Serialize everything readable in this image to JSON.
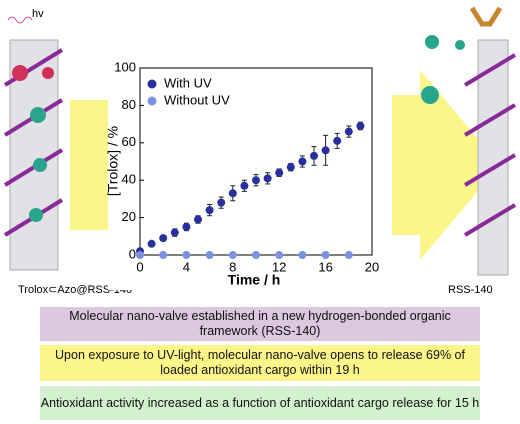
{
  "chart_data": {
    "type": "scatter",
    "x_label": "Time / h",
    "y_label": "[Trolox] / %",
    "xlim": [
      0,
      20
    ],
    "xticks": [
      0,
      4,
      8,
      12,
      16,
      20
    ],
    "ylim": [
      0,
      100
    ],
    "yticks": [
      0,
      20,
      40,
      60,
      80,
      100
    ],
    "legend": "upper left",
    "series": [
      {
        "name": "With UV",
        "color": "#2a2f9e",
        "x": [
          0,
          1,
          2,
          3,
          4,
          5,
          6,
          7,
          8,
          9,
          10,
          11,
          12,
          13,
          14,
          15,
          16,
          17,
          18,
          19
        ],
        "values": [
          2,
          6,
          9,
          12,
          15,
          19,
          24,
          28,
          33,
          37,
          40,
          41,
          44,
          47,
          50,
          53,
          56,
          61,
          66,
          69
        ],
        "errors": [
          1,
          1,
          1,
          2,
          2,
          2,
          3,
          3,
          4,
          3,
          3,
          3,
          2,
          2,
          3,
          5,
          8,
          4,
          3,
          2
        ]
      },
      {
        "name": "Without UV",
        "color": "#7b93dd",
        "x": [
          0,
          2,
          4,
          6,
          8,
          10,
          12,
          14,
          16,
          18
        ],
        "values": [
          0,
          0,
          0,
          0,
          0,
          0,
          0,
          0,
          0,
          0
        ]
      }
    ]
  },
  "labels": {
    "hv": "hv",
    "left": "Trolox⊂Azo@RSS-140",
    "right": "RSS-140"
  },
  "boxes": [
    "Molecular nano-valve established in a new hydrogen-bonded organic framework (RSS-140)",
    "Upon exposure to UV-light, molecular nano-valve opens to release 69% of loaded antioxidant cargo within 19 h",
    "Antioxidant activity increased as a function of antioxidant cargo release for 15 h"
  ]
}
